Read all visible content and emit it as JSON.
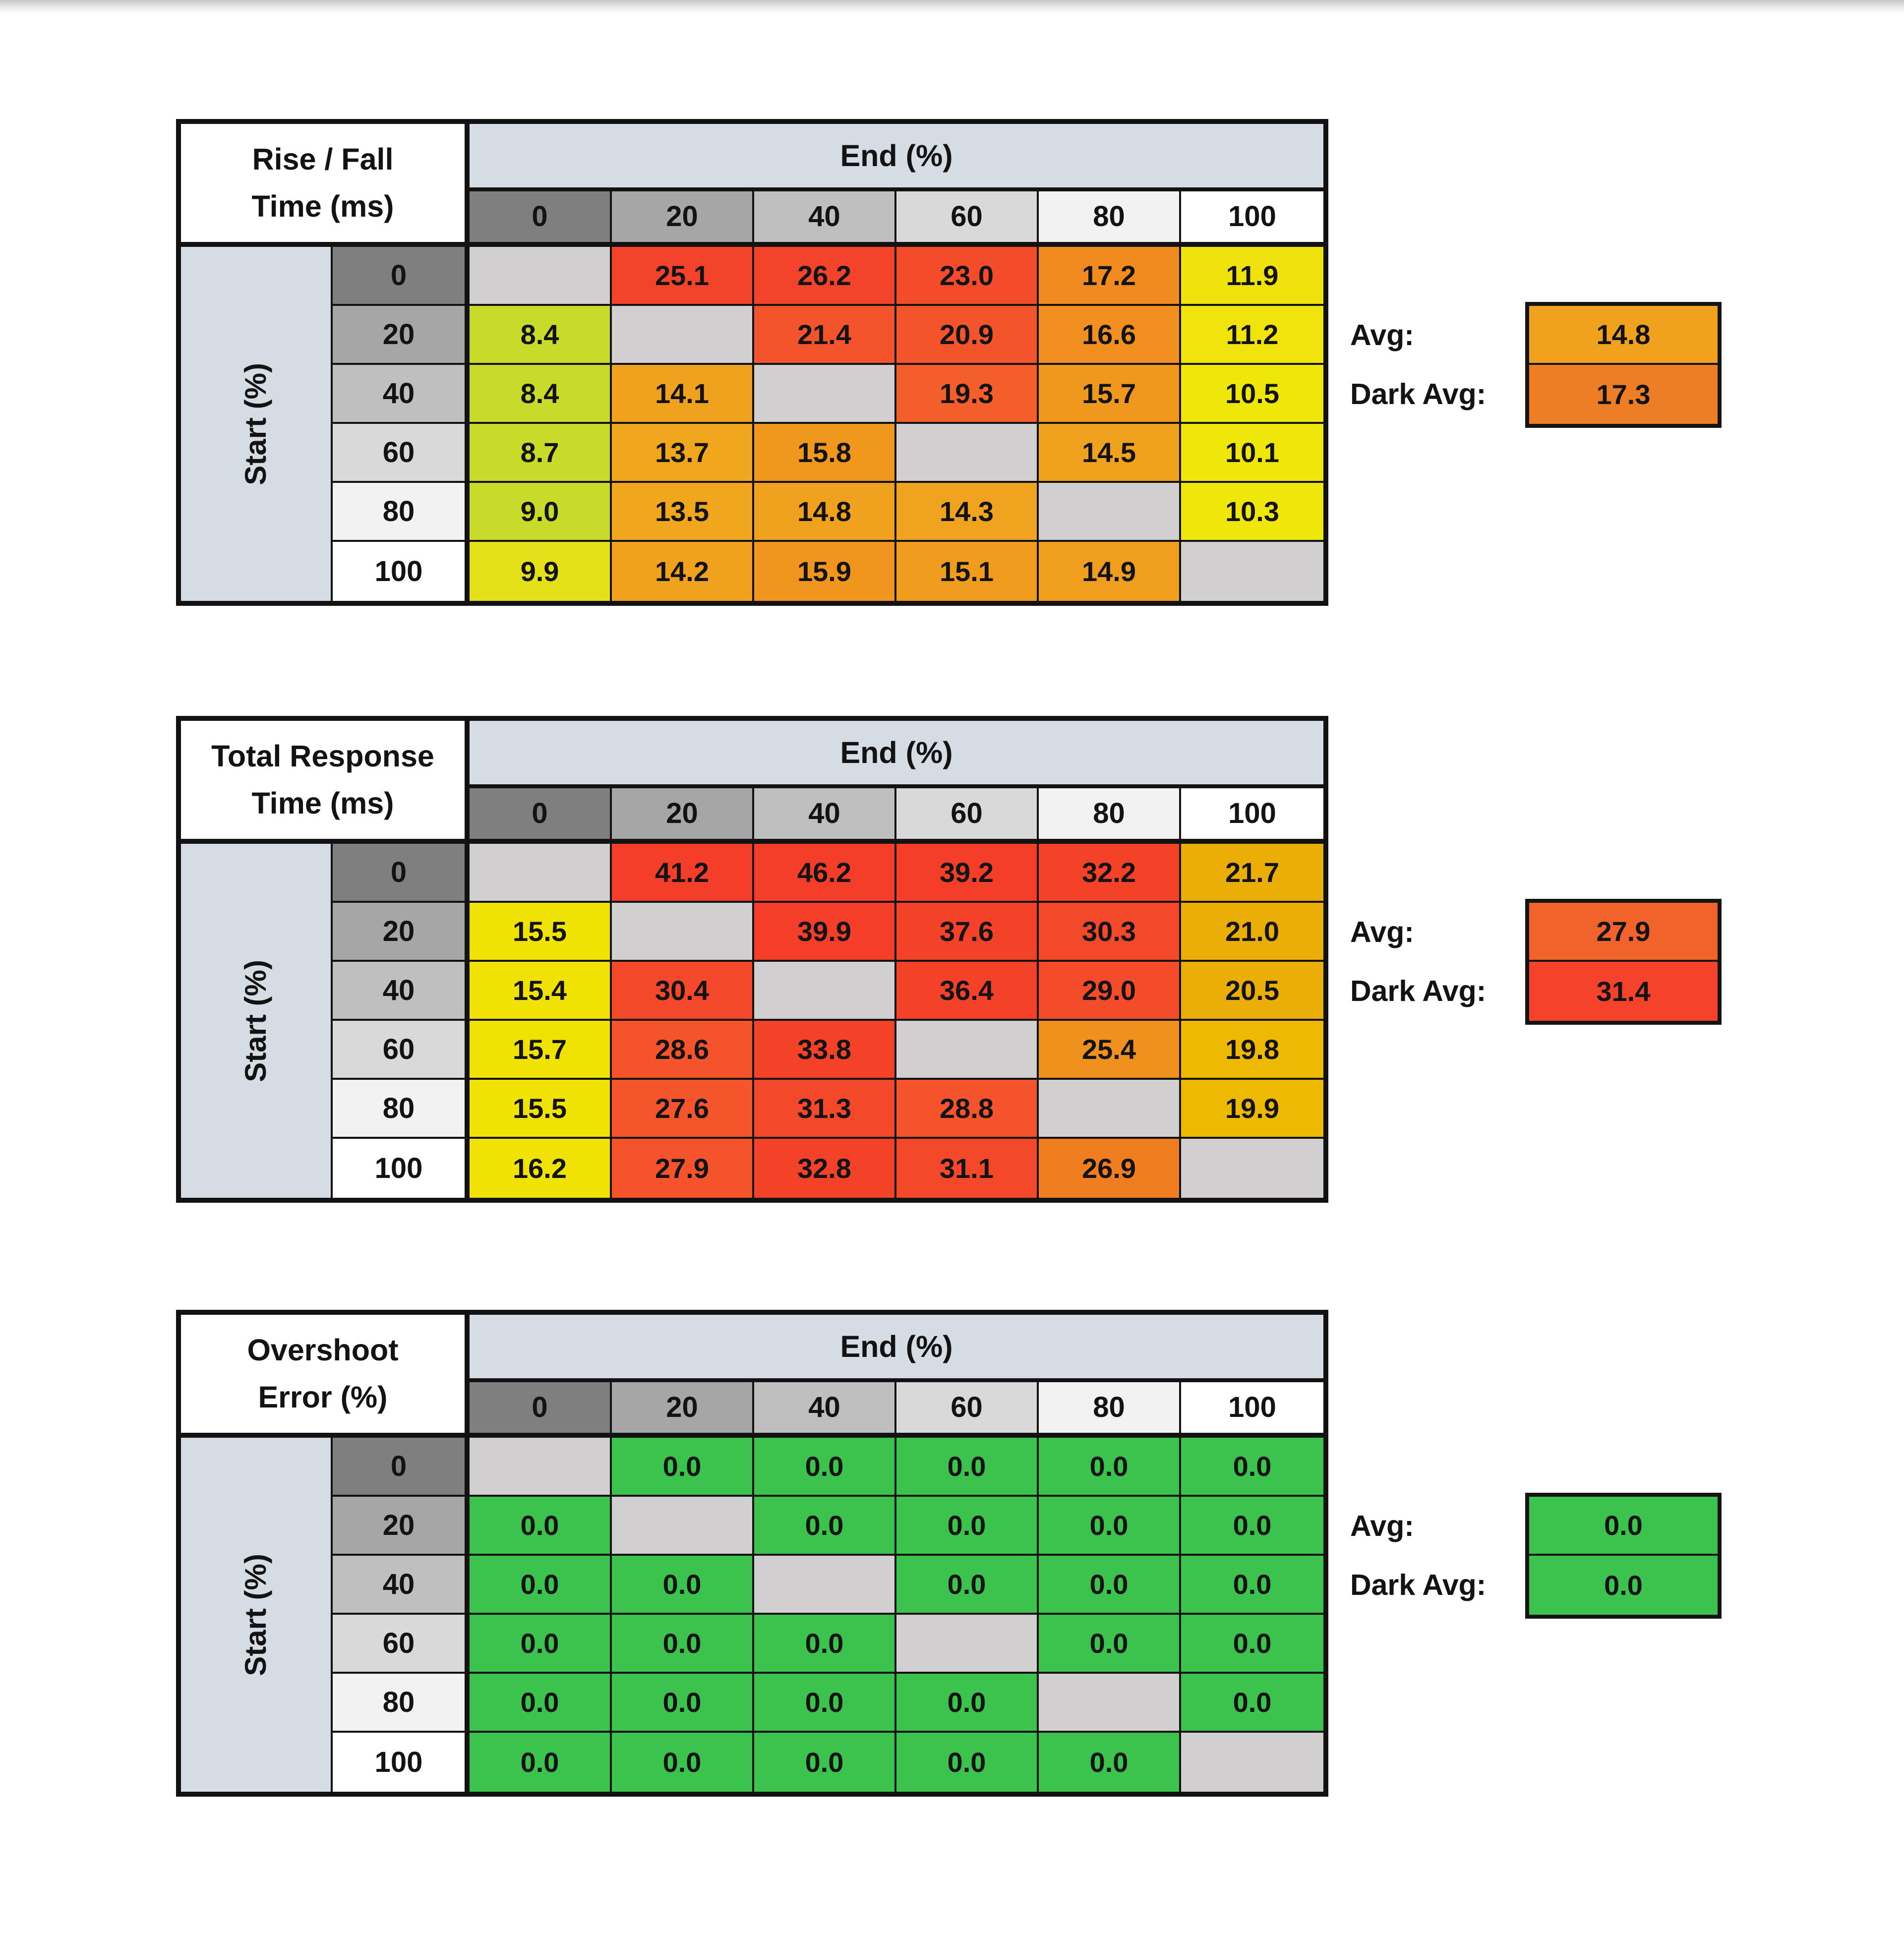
{
  "page": {
    "background": "#FFFFFF"
  },
  "palette": {
    "header_fill": "#D6DCE4",
    "gray_scale": [
      "#7F7F7F",
      "#A6A6A6",
      "#BFBFBF",
      "#D9D9D9",
      "#F2F2F2",
      "#FFFFFF"
    ],
    "diagonal_fill": "#D1CFCF",
    "grid_line": "#141414",
    "good_green": "#3CC34D"
  },
  "chart_data": [
    {
      "type": "heatmap",
      "id": "rise-fall-time",
      "title_lines": [
        "Rise / Fall",
        "Time (ms)"
      ],
      "col_group_label": "End (%)",
      "row_group_label": "Start (%)",
      "col_labels": [
        "0",
        "20",
        "40",
        "60",
        "80",
        "100"
      ],
      "row_labels": [
        "0",
        "20",
        "40",
        "60",
        "80",
        "100"
      ],
      "values": [
        [
          null,
          25.1,
          26.2,
          23.0,
          17.2,
          11.9
        ],
        [
          8.4,
          null,
          21.4,
          20.9,
          16.6,
          11.2
        ],
        [
          8.4,
          14.1,
          null,
          19.3,
          15.7,
          10.5
        ],
        [
          8.7,
          13.7,
          15.8,
          null,
          14.5,
          10.1
        ],
        [
          9.0,
          13.5,
          14.8,
          14.3,
          null,
          10.3
        ],
        [
          9.9,
          14.2,
          15.9,
          15.1,
          14.9,
          null
        ]
      ],
      "cell_colors": [
        [
          null,
          "#F4432B",
          "#F4432B",
          "#F44C2B",
          "#F18B20",
          "#F0E20D"
        ],
        [
          "#C8DB2B",
          null,
          "#F4542B",
          "#F4542B",
          "#F18F20",
          "#F0E40C"
        ],
        [
          "#C8DB2B",
          "#F0A11E",
          null,
          "#F45E2B",
          "#F0981E",
          "#F0E70A"
        ],
        [
          "#C8DB2B",
          "#F0A71E",
          "#F0981E",
          null,
          "#F0A11E",
          "#F0E70A"
        ],
        [
          "#C8DB2B",
          "#F0A71E",
          "#F0A11E",
          "#F0A31E",
          null,
          "#F0E70A"
        ],
        [
          "#E4E11B",
          "#F0A11E",
          "#F0961E",
          "#F09C1E",
          "#F09E1E",
          null
        ]
      ],
      "avg": {
        "label": "Avg:",
        "value": 14.8,
        "text": "14.8",
        "color": "#F0A11E"
      },
      "dark_avg": {
        "label": "Dark Avg:",
        "value": 17.3,
        "text": "17.3",
        "color": "#EE7E25"
      }
    },
    {
      "type": "heatmap",
      "id": "total-response-time",
      "title_lines": [
        "Total Response",
        "Time (ms)"
      ],
      "col_group_label": "End (%)",
      "row_group_label": "Start (%)",
      "col_labels": [
        "0",
        "20",
        "40",
        "60",
        "80",
        "100"
      ],
      "row_labels": [
        "0",
        "20",
        "40",
        "60",
        "80",
        "100"
      ],
      "values": [
        [
          null,
          41.2,
          46.2,
          39.2,
          32.2,
          21.7
        ],
        [
          15.5,
          null,
          39.9,
          37.6,
          30.3,
          21.0
        ],
        [
          15.4,
          30.4,
          null,
          36.4,
          29.0,
          20.5
        ],
        [
          15.7,
          28.6,
          33.8,
          null,
          25.4,
          19.8
        ],
        [
          15.5,
          27.6,
          31.3,
          28.8,
          null,
          19.9
        ],
        [
          16.2,
          27.9,
          32.8,
          31.1,
          26.9,
          null
        ]
      ],
      "cell_colors": [
        [
          null,
          "#F43E29",
          "#F43E29",
          "#F43E29",
          "#F44229",
          "#EAAE06"
        ],
        [
          "#F0E303",
          null,
          "#F43E29",
          "#F44229",
          "#F4482A",
          "#EAAE06"
        ],
        [
          "#F0E303",
          "#F4482A",
          null,
          "#F44229",
          "#F44C2A",
          "#EAAE06"
        ],
        [
          "#F0E303",
          "#F4532B",
          "#F44229",
          null,
          "#F0911D",
          "#EDB902"
        ],
        [
          "#F0E303",
          "#F4552B",
          "#F4482A",
          "#F4532B",
          null,
          "#EDB902"
        ],
        [
          "#F0E303",
          "#F4532B",
          "#F44229",
          "#F4482A",
          "#F07D20",
          null
        ]
      ],
      "avg": {
        "label": "Avg:",
        "value": 27.9,
        "text": "27.9",
        "color": "#F2632C"
      },
      "dark_avg": {
        "label": "Dark Avg:",
        "value": 31.4,
        "text": "31.4",
        "color": "#F4432A"
      }
    },
    {
      "type": "heatmap",
      "id": "overshoot-error",
      "title_lines": [
        "Overshoot",
        "Error (%)"
      ],
      "col_group_label": "End (%)",
      "row_group_label": "Start (%)",
      "col_labels": [
        "0",
        "20",
        "40",
        "60",
        "80",
        "100"
      ],
      "row_labels": [
        "0",
        "20",
        "40",
        "60",
        "80",
        "100"
      ],
      "values": [
        [
          null,
          0.0,
          0.0,
          0.0,
          0.0,
          0.0
        ],
        [
          0.0,
          null,
          0.0,
          0.0,
          0.0,
          0.0
        ],
        [
          0.0,
          0.0,
          null,
          0.0,
          0.0,
          0.0
        ],
        [
          0.0,
          0.0,
          0.0,
          null,
          0.0,
          0.0
        ],
        [
          0.0,
          0.0,
          0.0,
          0.0,
          null,
          0.0
        ],
        [
          0.0,
          0.0,
          0.0,
          0.0,
          0.0,
          null
        ]
      ],
      "cell_colors": [
        [
          null,
          "#3CC34D",
          "#3CC34D",
          "#3CC34D",
          "#3CC34D",
          "#3CC34D"
        ],
        [
          "#3CC34D",
          null,
          "#3CC34D",
          "#3CC34D",
          "#3CC34D",
          "#3CC34D"
        ],
        [
          "#3CC34D",
          "#3CC34D",
          null,
          "#3CC34D",
          "#3CC34D",
          "#3CC34D"
        ],
        [
          "#3CC34D",
          "#3CC34D",
          "#3CC34D",
          null,
          "#3CC34D",
          "#3CC34D"
        ],
        [
          "#3CC34D",
          "#3CC34D",
          "#3CC34D",
          "#3CC34D",
          null,
          "#3CC34D"
        ],
        [
          "#3CC34D",
          "#3CC34D",
          "#3CC34D",
          "#3CC34D",
          "#3CC34D",
          null
        ]
      ],
      "avg": {
        "label": "Avg:",
        "value": 0.0,
        "text": "0.0",
        "color": "#3CC34D"
      },
      "dark_avg": {
        "label": "Dark Avg:",
        "value": 0.0,
        "text": "0.0",
        "color": "#3CC34D"
      }
    }
  ]
}
